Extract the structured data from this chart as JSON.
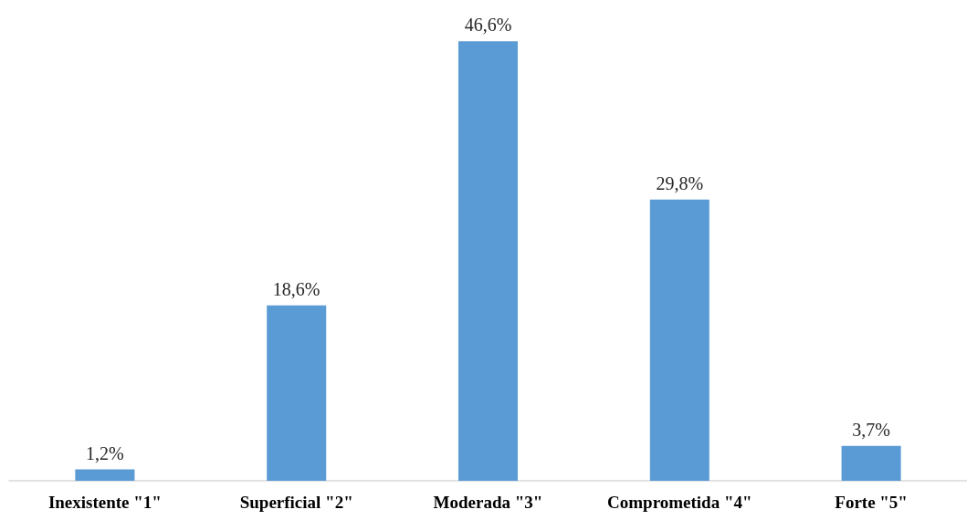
{
  "chart_data": {
    "type": "bar",
    "categories": [
      "Inexistente \"1\"",
      "Superficial \"2\"",
      "Moderada \"3\"",
      "Comprometida \"4\"",
      "Forte \"5\""
    ],
    "values": [
      1.2,
      18.6,
      46.6,
      29.8,
      3.7
    ],
    "value_labels": [
      "1,2%",
      "18,6%",
      "46,6%",
      "29,8%",
      "3,7%"
    ],
    "color": "#5b9bd5"
  }
}
